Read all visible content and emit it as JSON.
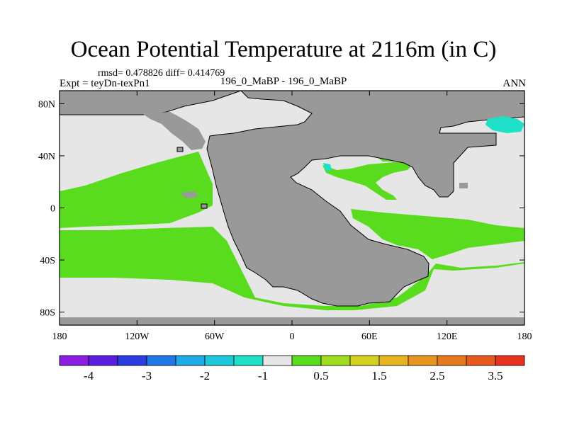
{
  "title": "Ocean Potential Temperature at 2116m (in C)",
  "stats": "rmsd= 0.478826 diff= 0.414769",
  "expt": "Expt = teyDn-texPn1",
  "case": "196_0_MaBP - 196_0_MaBP",
  "season": "ANN",
  "axes": {
    "x_ticks": [
      {
        "value": -180,
        "label": "180"
      },
      {
        "value": -120,
        "label": "120W"
      },
      {
        "value": -60,
        "label": "60W"
      },
      {
        "value": 0,
        "label": "0"
      },
      {
        "value": 60,
        "label": "60E"
      },
      {
        "value": 120,
        "label": "120E"
      },
      {
        "value": 180,
        "label": "180"
      }
    ],
    "y_ticks": [
      {
        "value": 80,
        "label": "80N"
      },
      {
        "value": 40,
        "label": "40N"
      },
      {
        "value": 0,
        "label": "0"
      },
      {
        "value": -40,
        "label": "40S"
      },
      {
        "value": -80,
        "label": "80S"
      }
    ]
  },
  "colorbar": {
    "colors": [
      "#8b1ee0",
      "#5a1ee0",
      "#2a3ce0",
      "#1e78e6",
      "#1eaae6",
      "#1ec8dc",
      "#1ee0c8",
      "#e6e6e6",
      "#5adc1e",
      "#a0dc1e",
      "#d2d21e",
      "#e6b41e",
      "#e6961e",
      "#e6781e",
      "#e65a1e",
      "#e6321e"
    ],
    "labels": [
      {
        "boundary": 1,
        "text": "-4"
      },
      {
        "boundary": 3,
        "text": "-3"
      },
      {
        "boundary": 5,
        "text": "-2"
      },
      {
        "boundary": 7,
        "text": "-1"
      },
      {
        "boundary": 9,
        "text": "0.5"
      },
      {
        "boundary": 11,
        "text": "1.5"
      },
      {
        "boundary": 13,
        "text": "2.5"
      },
      {
        "boundary": 15,
        "text": "3.5"
      }
    ]
  },
  "colors": {
    "land": "#999999",
    "neutral": "#e6e6e6",
    "green": "#5adc1e",
    "cyan": "#1ee0c8"
  }
}
